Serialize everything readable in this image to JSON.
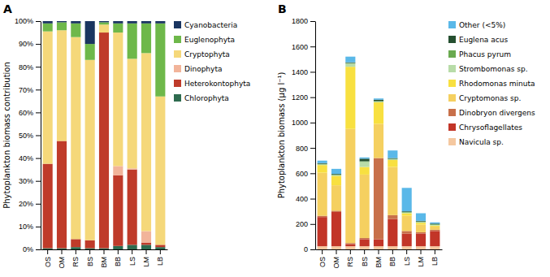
{
  "chart_data": [
    {
      "type": "bar",
      "stacked": true,
      "title": "A",
      "ylabel": "Phytoplankton biomass contribution",
      "categories": [
        "OS",
        "OM",
        "RS",
        "BS",
        "BM",
        "BB",
        "LS",
        "LM",
        "LB"
      ],
      "ylim": [
        0,
        100
      ],
      "yticks": [
        {
          "value": 0,
          "label": "0%"
        },
        {
          "value": 10,
          "label": "10%"
        },
        {
          "value": 20,
          "label": "20%"
        },
        {
          "value": 30,
          "label": "30%"
        },
        {
          "value": 40,
          "label": "40%"
        },
        {
          "value": 50,
          "label": "50%"
        },
        {
          "value": 60,
          "label": "60%"
        },
        {
          "value": 70,
          "label": "70%"
        },
        {
          "value": 80,
          "label": "80%"
        },
        {
          "value": 90,
          "label": "90%"
        },
        {
          "value": 100,
          "label": "100%"
        }
      ],
      "legend": "right",
      "series": [
        {
          "name": "Chlorophyta",
          "color": "#2e6b4f",
          "values": [
            0.5,
            0.5,
            1.0,
            0.5,
            0.5,
            1.5,
            2.0,
            2.0,
            1.0
          ]
        },
        {
          "name": "Heterokontophyta",
          "color": "#bf3b2a",
          "values": [
            37.0,
            47.0,
            3.5,
            3.5,
            94.5,
            31.0,
            33.0,
            1.0,
            1.0
          ]
        },
        {
          "name": "Dinophyta",
          "color": "#f2b49a",
          "values": [
            0.0,
            0.0,
            0.0,
            0.0,
            0.0,
            4.0,
            0.5,
            5.0,
            0.0
          ]
        },
        {
          "name": "Cryptophyta",
          "color": "#f5d87a",
          "values": [
            58.0,
            48.5,
            88.5,
            79.0,
            3.5,
            58.5,
            48.0,
            78.0,
            65.0
          ]
        },
        {
          "name": "Euglenophyta",
          "color": "#6eb84a",
          "values": [
            3.5,
            3.5,
            6.0,
            7.0,
            1.0,
            4.0,
            15.5,
            13.0,
            32.0
          ]
        },
        {
          "name": "Cyanobacteria",
          "color": "#1a3560",
          "values": [
            1.0,
            0.5,
            1.0,
            10.0,
            0.5,
            1.0,
            1.0,
            1.0,
            1.0
          ]
        }
      ]
    },
    {
      "type": "bar",
      "stacked": true,
      "title": "B",
      "ylabel": "Phytoplankton biomass (μg l⁻¹)",
      "categories": [
        "OS",
        "OM",
        "RS",
        "BS",
        "BM",
        "BB",
        "LS",
        "LM",
        "LB"
      ],
      "ylim": [
        0,
        1800
      ],
      "yticks": [
        0,
        200,
        400,
        600,
        800,
        1000,
        1200,
        1400,
        1600,
        1800
      ],
      "legend": "right",
      "series": [
        {
          "name": "Navicula sp.",
          "color": "#f5c8a0",
          "values": [
            25,
            25,
            25,
            25,
            25,
            25,
            25,
            25,
            25
          ]
        },
        {
          "name": "Chrysoflagellates",
          "color": "#c23528",
          "values": [
            230,
            270,
            15,
            55,
            55,
            215,
            100,
            100,
            120
          ]
        },
        {
          "name": "Dinobryon divergens",
          "color": "#c8704a",
          "values": [
            10,
            10,
            10,
            10,
            640,
            30,
            20,
            10,
            10
          ]
        },
        {
          "name": "Cryptomonas sp.",
          "color": "#f5d060",
          "values": [
            340,
            200,
            900,
            500,
            270,
            380,
            120,
            60,
            25
          ]
        },
        {
          "name": "Rhodomonas minuta",
          "color": "#f8e040",
          "values": [
            60,
            75,
            490,
            60,
            170,
            55,
            20,
            15,
            8
          ]
        },
        {
          "name": "Strombomonas sp.",
          "color": "#b8dca8",
          "values": [
            5,
            5,
            25,
            40,
            5,
            5,
            5,
            5,
            5
          ]
        },
        {
          "name": "Phacus pyrum",
          "color": "#6aaa50",
          "values": [
            5,
            5,
            5,
            5,
            5,
            5,
            5,
            5,
            5
          ]
        },
        {
          "name": "Euglena acus",
          "color": "#254f30",
          "values": [
            5,
            5,
            5,
            20,
            10,
            5,
            5,
            5,
            5
          ]
        },
        {
          "name": "Other (<5%)",
          "color": "#5ab8e8",
          "values": [
            20,
            40,
            45,
            10,
            10,
            60,
            185,
            60,
            10
          ]
        }
      ]
    }
  ]
}
